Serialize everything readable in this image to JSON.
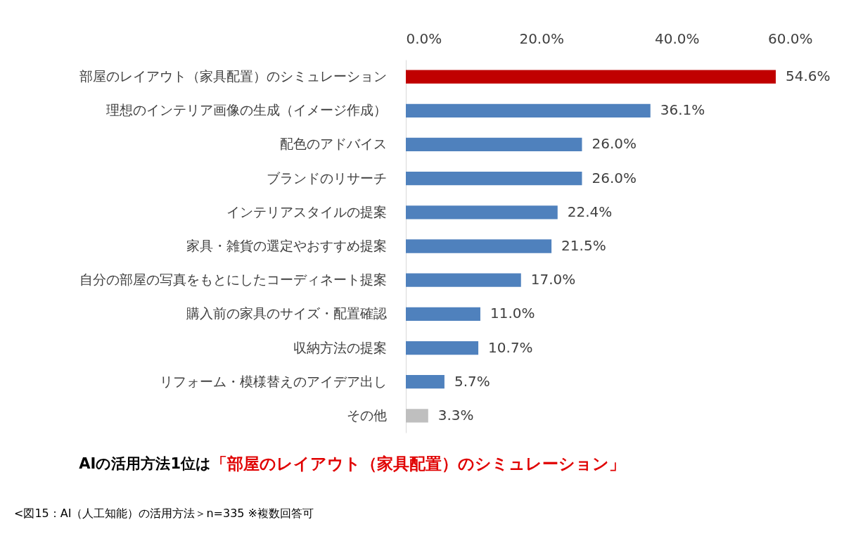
{
  "chart_data": {
    "type": "bar",
    "orientation": "horizontal",
    "categories": [
      "部屋のレイアウト（家具配置）のシミュレーション",
      "理想のインテリア画像の生成（イメージ作成）",
      "配色のアドバイス",
      "ブランドのリサーチ",
      "インテリアスタイルの提案",
      "家具・雑貨の選定やおすすめ提案",
      "自分の部屋の写真をもとにしたコーディネート提案",
      "購入前の家具のサイズ・配置確認",
      "収納方法の提案",
      "リフォーム・模様替えのアイデア出し",
      "その他"
    ],
    "values": [
      54.6,
      36.1,
      26.0,
      26.0,
      22.4,
      21.5,
      17.0,
      11.0,
      10.7,
      5.7,
      3.3
    ],
    "value_labels": [
      "54.6%",
      "36.1%",
      "26.0%",
      "26.0%",
      "22.4%",
      "21.5%",
      "17.0%",
      "11.0%",
      "10.7%",
      "5.7%",
      "3.3%"
    ],
    "colors": [
      "#c00000",
      "#4f81bd",
      "#4f81bd",
      "#4f81bd",
      "#4f81bd",
      "#4f81bd",
      "#4f81bd",
      "#4f81bd",
      "#4f81bd",
      "#4f81bd",
      "#bfbfbf"
    ],
    "xlim": [
      0,
      60
    ],
    "xticks": [
      {
        "value": 0,
        "label": "0.0%"
      },
      {
        "value": 20,
        "label": "20.0%"
      },
      {
        "value": 40,
        "label": "40.0%"
      },
      {
        "value": 60,
        "label": "60.0%"
      }
    ],
    "grid": false,
    "annotations": [
      "AIの活用方法1位は",
      "「部屋のレイアウト（家具配置）のシミュレーション」",
      "<図15：AI（人工知能）の活用方法＞n=335 ※複数回答可"
    ]
  }
}
